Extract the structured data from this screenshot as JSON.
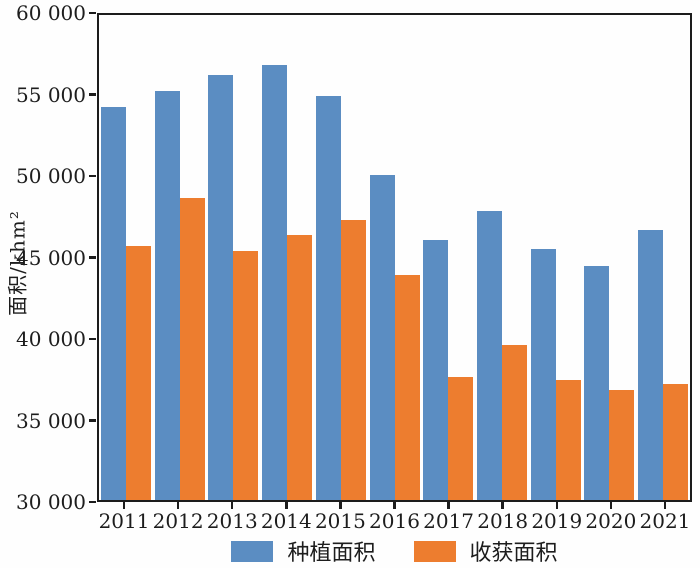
{
  "figure": {
    "background": "#fefefe",
    "frame_color": "#1c1c1c",
    "text_color": "#1d1d1d"
  },
  "chart_data": {
    "type": "bar",
    "title": "",
    "ylabel": "面积/khm²",
    "xlabel": "",
    "ylim": [
      30000,
      60000
    ],
    "ytick_interval": 5000,
    "ytick_labels_top_to_bottom": [
      "60 000",
      "55 000",
      "50 000",
      "45 000",
      "40 000",
      "35 000",
      "30 000"
    ],
    "categories": [
      "2011",
      "2012",
      "2013",
      "2014",
      "2015",
      "2016",
      "2017",
      "2018",
      "2019",
      "2020",
      "2021"
    ],
    "series": [
      {
        "name": "种植面积",
        "color": "#5b8dc2",
        "values": [
          54300,
          55300,
          56300,
          56900,
          55000,
          50100,
          46100,
          47900,
          45500,
          44500,
          46700
        ]
      },
      {
        "name": "收获面积",
        "color": "#ed7d2f",
        "values": [
          45700,
          48700,
          45400,
          46400,
          47300,
          43900,
          37600,
          39600,
          37400,
          36800,
          37200
        ]
      }
    ],
    "legend_position": "bottom",
    "grid": false
  }
}
